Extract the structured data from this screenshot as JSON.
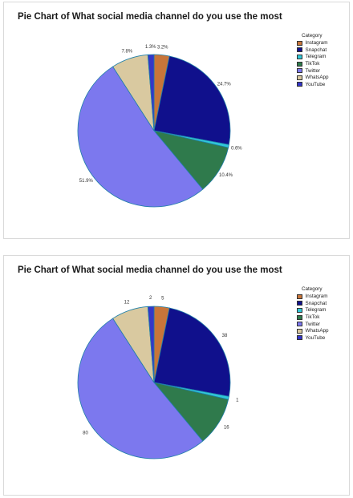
{
  "chart_data": [
    {
      "type": "pie",
      "title": "Pie Chart of  What social media channel do you use the most",
      "legend_title": "Category",
      "legend_position": "right",
      "label_mode": "percent",
      "categories": [
        "Instagram",
        "Snapchat",
        "Telegram",
        "TikTok",
        "Twitter",
        "WhatsApp",
        "YouTube"
      ],
      "values": [
        5,
        38,
        1,
        16,
        80,
        12,
        2
      ],
      "labels": [
        "3.2%",
        "24.7%",
        "0.6%",
        "10.4%",
        "51.9%",
        "7.8%",
        "1.3%"
      ],
      "colors": [
        "#c8753a",
        "#10108c",
        "#30c8d8",
        "#2f7a4c",
        "#7c78ee",
        "#d9c9a0",
        "#3436c8"
      ]
    },
    {
      "type": "pie",
      "title": "Pie Chart of  What social media channel do you use the most",
      "legend_title": "Category",
      "legend_position": "right",
      "label_mode": "count",
      "categories": [
        "Instagram",
        "Snapchat",
        "Telegram",
        "TikTok",
        "Twitter",
        "WhatsApp",
        "YouTube"
      ],
      "values": [
        5,
        38,
        1,
        16,
        80,
        12,
        2
      ],
      "labels": [
        "5",
        "38",
        "1",
        "16",
        "80",
        "12",
        "2"
      ],
      "colors": [
        "#c8753a",
        "#10108c",
        "#30c8d8",
        "#2f7a4c",
        "#7c78ee",
        "#d9c9a0",
        "#3436c8"
      ]
    }
  ]
}
